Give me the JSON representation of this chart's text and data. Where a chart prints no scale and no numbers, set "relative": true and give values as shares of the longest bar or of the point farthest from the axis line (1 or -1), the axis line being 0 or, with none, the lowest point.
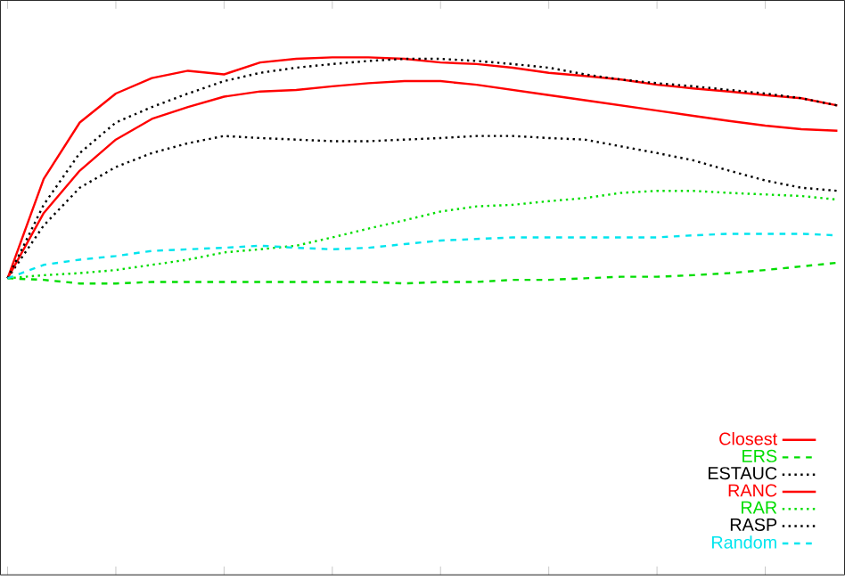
{
  "chart_data": {
    "type": "line",
    "relative": true,
    "legend": "bottom right",
    "categories": [
      null,
      null,
      null,
      null,
      null,
      null,
      null,
      null,
      null,
      null,
      null,
      null,
      null,
      null,
      null,
      null,
      null,
      null,
      null,
      null,
      null,
      null,
      null,
      null
    ],
    "series": [
      {
        "name": "Closest",
        "color": "#ff0000",
        "line_style": "solid",
        "values": [
          0.573,
          0.765,
          0.874,
          0.93,
          0.96,
          0.974,
          0.967,
          0.99,
          0.997,
          1.0,
          1.0,
          0.997,
          0.99,
          0.987,
          0.98,
          0.97,
          0.964,
          0.957,
          0.947,
          0.94,
          0.934,
          0.927,
          0.921,
          0.907
        ]
      },
      {
        "name": "ERS",
        "color": "#00dd00",
        "line_style": "dashed",
        "values": [
          0.573,
          0.57,
          0.563,
          0.563,
          0.566,
          0.566,
          0.566,
          0.566,
          0.566,
          0.566,
          0.566,
          0.563,
          0.566,
          0.566,
          0.57,
          0.57,
          0.573,
          0.576,
          0.576,
          0.579,
          0.583,
          0.589,
          0.596,
          0.603
        ]
      },
      {
        "name": "ESTAUC",
        "color": "#000000",
        "line_style": "dotted",
        "values": [
          0.573,
          0.675,
          0.748,
          0.788,
          0.815,
          0.834,
          0.848,
          0.844,
          0.841,
          0.838,
          0.838,
          0.841,
          0.844,
          0.848,
          0.848,
          0.844,
          0.841,
          0.828,
          0.815,
          0.801,
          0.781,
          0.762,
          0.748,
          0.742
        ]
      },
      {
        "name": "RANC",
        "color": "#ff0000",
        "line_style": "solid",
        "values": [
          0.573,
          0.699,
          0.781,
          0.841,
          0.881,
          0.904,
          0.924,
          0.934,
          0.937,
          0.944,
          0.95,
          0.954,
          0.954,
          0.947,
          0.937,
          0.927,
          0.917,
          0.907,
          0.897,
          0.887,
          0.877,
          0.868,
          0.861,
          0.858
        ]
      },
      {
        "name": "RAR",
        "color": "#00dd00",
        "line_style": "dotted",
        "values": [
          0.573,
          0.579,
          0.583,
          0.589,
          0.599,
          0.609,
          0.623,
          0.629,
          0.636,
          0.652,
          0.669,
          0.685,
          0.702,
          0.712,
          0.715,
          0.722,
          0.728,
          0.738,
          0.742,
          0.742,
          0.738,
          0.735,
          0.732,
          0.725
        ]
      },
      {
        "name": "RASP",
        "color": "#000000",
        "line_style": "dotted",
        "values": [
          0.573,
          0.715,
          0.815,
          0.874,
          0.904,
          0.93,
          0.954,
          0.97,
          0.98,
          0.987,
          0.993,
          0.997,
          0.997,
          0.993,
          0.987,
          0.98,
          0.967,
          0.957,
          0.95,
          0.944,
          0.937,
          0.93,
          0.921,
          0.907
        ]
      },
      {
        "name": "Random",
        "color": "#00e5ee",
        "line_style": "dashed",
        "values": [
          0.573,
          0.599,
          0.609,
          0.616,
          0.626,
          0.629,
          0.632,
          0.636,
          0.632,
          0.629,
          0.632,
          0.639,
          0.646,
          0.649,
          0.652,
          0.652,
          0.652,
          0.652,
          0.652,
          0.656,
          0.659,
          0.659,
          0.659,
          0.656
        ]
      }
    ]
  }
}
